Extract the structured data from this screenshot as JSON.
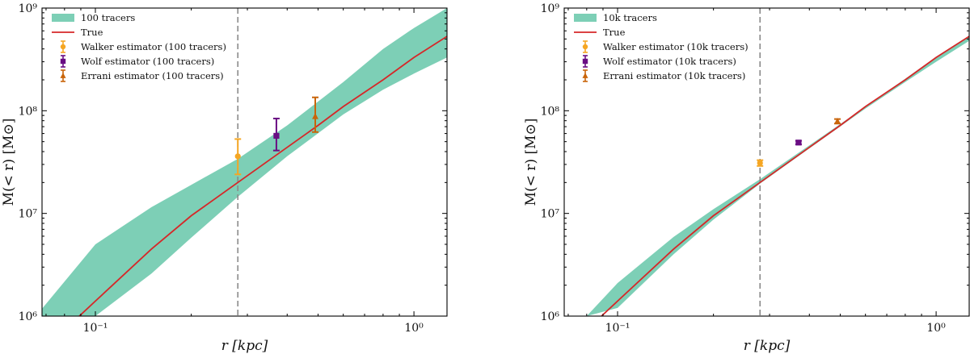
{
  "chart_data": [
    {
      "type": "line",
      "xscale": "log",
      "yscale": "log",
      "xlim": [
        0.068,
        1.27
      ],
      "ylim": [
        1000000,
        1000000000
      ],
      "xlabel": "r [kpc]",
      "ylabel": "M(< r) [M⊙]",
      "x_ticks": [
        {
          "value": 0.1,
          "label": "10⁻¹"
        },
        {
          "value": 1.0,
          "label": "10⁰"
        }
      ],
      "y_ticks": [
        {
          "value": 1000000,
          "label": "10⁶"
        },
        {
          "value": 10000000,
          "label": "10⁷"
        },
        {
          "value": 100000000,
          "label": "10⁸"
        },
        {
          "value": 1000000000,
          "label": "10⁹"
        }
      ],
      "vline_x": 0.28,
      "band": {
        "name": "100 tracers",
        "color": "#7dcfb6",
        "x": [
          0.068,
          0.1,
          0.15,
          0.2,
          0.28,
          0.4,
          0.6,
          0.8,
          1.0,
          1.27
        ],
        "lower": [
          1000000,
          1000000,
          2600000,
          5800000,
          14500000,
          36000000,
          92000000,
          160000000,
          230000000,
          330000000
        ],
        "upper": [
          1180000,
          5000000,
          11500000,
          19000000,
          34000000,
          72000000,
          190000000,
          400000000,
          640000000,
          1000000000
        ]
      },
      "true_curve": {
        "name": "True",
        "color": "#d62728",
        "x": [
          0.089,
          0.1,
          0.15,
          0.2,
          0.28,
          0.4,
          0.5,
          0.6,
          0.8,
          1.0,
          1.27
        ],
        "y": [
          1000000,
          1400000,
          4500000,
          9500000,
          20000000,
          44000000,
          72000000,
          110000000,
          200000000,
          330000000,
          530000000
        ]
      },
      "estimators": [
        {
          "name": "Walker estimator (100 tracers)",
          "color": "#f5a623",
          "marker": "circle",
          "x": 0.28,
          "y": 36000000,
          "ylow": 24000000,
          "yhigh": 53000000
        },
        {
          "name": "Wolf estimator (100 tracers)",
          "color": "#6a0d83",
          "marker": "square",
          "x": 0.37,
          "y": 57000000,
          "ylow": 41000000,
          "yhigh": 84000000
        },
        {
          "name": "Errani estimator (100 tracers)",
          "color": "#c9650a",
          "marker": "triangle",
          "x": 0.49,
          "y": 88000000,
          "ylow": 62000000,
          "yhigh": 135000000
        }
      ],
      "legend_location": "top-left"
    },
    {
      "type": "line",
      "xscale": "log",
      "yscale": "log",
      "xlim": [
        0.068,
        1.27
      ],
      "ylim": [
        1000000,
        1000000000
      ],
      "xlabel": "r [kpc]",
      "ylabel": "M(< r) [M⊙]",
      "x_ticks": [
        {
          "value": 0.1,
          "label": "10⁻¹"
        },
        {
          "value": 1.0,
          "label": "10⁰"
        }
      ],
      "y_ticks": [
        {
          "value": 1000000,
          "label": "10⁶"
        },
        {
          "value": 10000000,
          "label": "10⁷"
        },
        {
          "value": 100000000,
          "label": "10⁸"
        },
        {
          "value": 1000000000,
          "label": "10⁹"
        }
      ],
      "vline_x": 0.28,
      "band": {
        "name": "10k tracers",
        "color": "#7dcfb6",
        "x": [
          0.08,
          0.1,
          0.15,
          0.2,
          0.28,
          0.4,
          0.6,
          0.8,
          1.0,
          1.27
        ],
        "lower": [
          1000000,
          1200000,
          4000000,
          8700000,
          19500000,
          43000000,
          105000000,
          190000000,
          300000000,
          480000000
        ],
        "upper": [
          1000000,
          2100000,
          5900000,
          11000000,
          21500000,
          46000000,
          110000000,
          205000000,
          335000000,
          540000000
        ]
      },
      "true_curve": {
        "name": "True",
        "color": "#d62728",
        "x": [
          0.089,
          0.1,
          0.15,
          0.2,
          0.28,
          0.4,
          0.5,
          0.6,
          0.8,
          1.0,
          1.27
        ],
        "y": [
          1000000,
          1400000,
          4500000,
          9500000,
          20000000,
          44000000,
          72000000,
          110000000,
          200000000,
          330000000,
          530000000
        ]
      },
      "estimators": [
        {
          "name": "Walker estimator (10k tracers)",
          "color": "#f5a623",
          "marker": "circle",
          "x": 0.28,
          "y": 31000000,
          "ylow": 29000000,
          "yhigh": 33000000
        },
        {
          "name": "Wolf estimator (10k tracers)",
          "color": "#6a0d83",
          "marker": "square",
          "x": 0.37,
          "y": 49000000,
          "ylow": 47000000,
          "yhigh": 51000000
        },
        {
          "name": "Errani estimator (10k tracers)",
          "color": "#c9650a",
          "marker": "triangle",
          "x": 0.49,
          "y": 79000000,
          "ylow": 75000000,
          "yhigh": 83000000
        }
      ],
      "legend_location": "top-left"
    }
  ]
}
